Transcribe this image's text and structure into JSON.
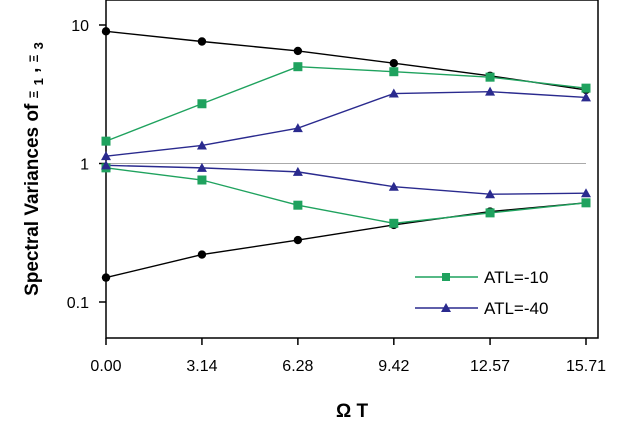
{
  "chart_data": {
    "type": "line",
    "title": "",
    "xlabel": "Ω T",
    "ylabel": "Spectral Variances of Ξ1, Ξ3",
    "ylabel_parts": {
      "prefix": "Spectral Variances of",
      "sym1": "Ξ",
      "sub1": "1",
      "sep": ", ",
      "sym2": "Ξ",
      "sub2": "3"
    },
    "yscale": "log",
    "xlim": [
      0,
      15.71
    ],
    "ylim": [
      0.05,
      20
    ],
    "x": [
      0.0,
      3.14,
      6.28,
      9.42,
      12.57,
      15.71
    ],
    "x_tick_labels": [
      "0.00",
      "3.14",
      "6.28",
      "9.42",
      "12.57",
      "15.71"
    ],
    "y_ticks": [
      0.1,
      1,
      10
    ],
    "y_tick_labels": [
      "0.1",
      "1",
      "10"
    ],
    "reference_line": 1,
    "legend_position": "bottom-right",
    "series": [
      {
        "key": "k_up",
        "color": "#000000",
        "marker": "circle",
        "values": [
          9.0,
          7.6,
          6.5,
          5.3,
          4.3,
          3.4
        ]
      },
      {
        "key": "k_dn",
        "color": "#000000",
        "marker": "circle",
        "values": [
          0.15,
          0.22,
          0.28,
          0.36,
          0.45,
          0.52
        ]
      },
      {
        "key": "g_up",
        "name": "ATL=-10",
        "color": "#1fa25e",
        "marker": "square",
        "values": [
          1.45,
          2.7,
          5.0,
          4.6,
          4.2,
          3.5
        ]
      },
      {
        "key": "g_dn",
        "color": "#1fa25e",
        "marker": "square",
        "values": [
          0.93,
          0.76,
          0.5,
          0.37,
          0.44,
          0.52
        ]
      },
      {
        "key": "b_up",
        "name": "ATL=-40",
        "color": "#2a2a8e",
        "marker": "triangle",
        "values": [
          1.13,
          1.35,
          1.8,
          3.2,
          3.3,
          3.0
        ]
      },
      {
        "key": "b_dn",
        "color": "#2a2a8e",
        "marker": "triangle",
        "values": [
          0.97,
          0.93,
          0.87,
          0.68,
          0.6,
          0.61
        ]
      }
    ]
  }
}
